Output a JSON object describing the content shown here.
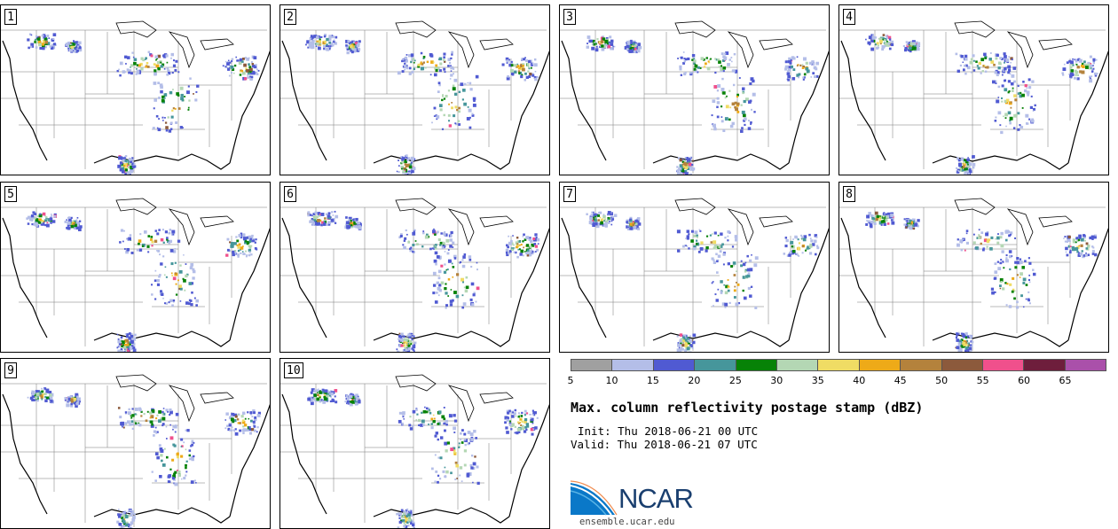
{
  "panels": [
    {
      "label": "1",
      "seed": 11
    },
    {
      "label": "2",
      "seed": 23
    },
    {
      "label": "3",
      "seed": 37
    },
    {
      "label": "4",
      "seed": 41
    },
    {
      "label": "5",
      "seed": 53
    },
    {
      "label": "6",
      "seed": 67
    },
    {
      "label": "7",
      "seed": 71
    },
    {
      "label": "8",
      "seed": 83
    },
    {
      "label": "9",
      "seed": 97
    },
    {
      "label": "10",
      "seed": 101
    }
  ],
  "colorbar": {
    "colors": [
      "#a0a0a0",
      "#b4bee8",
      "#505ad2",
      "#46969b",
      "#078207",
      "#b4d7b4",
      "#f0dc64",
      "#eeaa18",
      "#b4823c",
      "#8c5a3c",
      "#f0508c",
      "#6e1e3c",
      "#aa50aa"
    ],
    "ticks": [
      "5",
      "10",
      "15",
      "20",
      "25",
      "30",
      "35",
      "40",
      "45",
      "50",
      "55",
      "60",
      "65"
    ]
  },
  "title": "Max. column reflectivity postage stamp (dBZ)",
  "init": "Init: Thu 2018-06-21 00 UTC",
  "valid": "Valid: Thu 2018-06-21 07 UTC",
  "logo": {
    "text": "NCAR",
    "color": "#1a3f6f",
    "accent": "#0a78c8"
  },
  "site": "ensemble.ucar.edu"
}
